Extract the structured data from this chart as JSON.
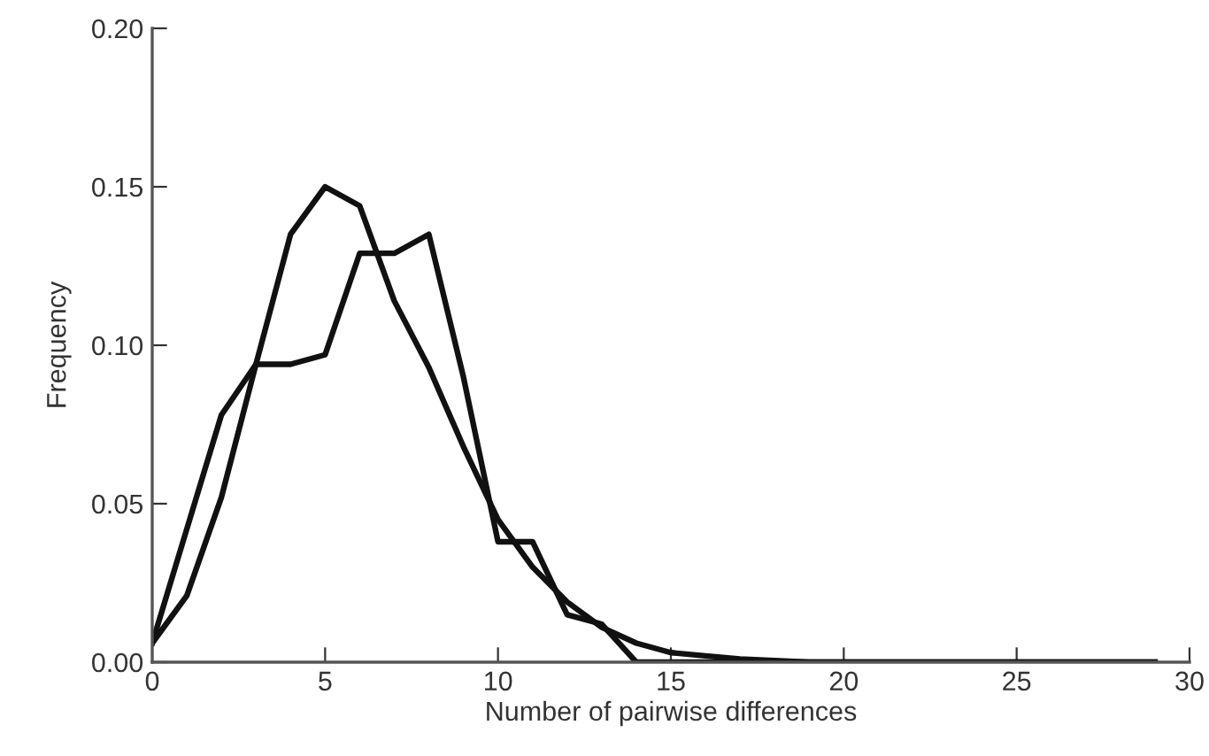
{
  "chart_data": {
    "type": "line",
    "xlabel": "Number of pairwise differences",
    "ylabel": "Frequency",
    "x": [
      0,
      1,
      2,
      3,
      4,
      5,
      6,
      7,
      8,
      9,
      10,
      11,
      12,
      13,
      14,
      15,
      16,
      17,
      18,
      19,
      20,
      21,
      22,
      23,
      24,
      25,
      26,
      27,
      28,
      29
    ],
    "series": [
      {
        "color": "#111111",
        "values": [
          0.006,
          0.042,
          0.078,
          0.094,
          0.094,
          0.097,
          0.129,
          0.129,
          0.135,
          0.09,
          0.038,
          0.038,
          0.015,
          0.012,
          0.0,
          0,
          0,
          0,
          0,
          0,
          0,
          0,
          0,
          0,
          0,
          0,
          0,
          0,
          0,
          0
        ]
      },
      {
        "color": "#111111",
        "values": [
          0.006,
          0.021,
          0.052,
          0.094,
          0.135,
          0.15,
          0.144,
          0.114,
          0.093,
          0.068,
          0.045,
          0.03,
          0.019,
          0.011,
          0.006,
          0.003,
          0.002,
          0.001,
          0.0005,
          0,
          0,
          0,
          0,
          0,
          0,
          0,
          0,
          0,
          0,
          0
        ]
      }
    ],
    "xlim": [
      0,
      30
    ],
    "xticks": [
      0,
      5,
      10,
      15,
      20,
      25,
      30
    ],
    "ylim": [
      0,
      0.2
    ],
    "yticks": [
      {
        "value": 0,
        "label": "0.00"
      },
      {
        "value": 0.05,
        "label": "0.05"
      },
      {
        "value": 0.1,
        "label": "0.10"
      },
      {
        "value": 0.15,
        "label": "0.15"
      },
      {
        "value": 0.2,
        "label": "0.20"
      }
    ],
    "grid": false,
    "legend": false
  }
}
